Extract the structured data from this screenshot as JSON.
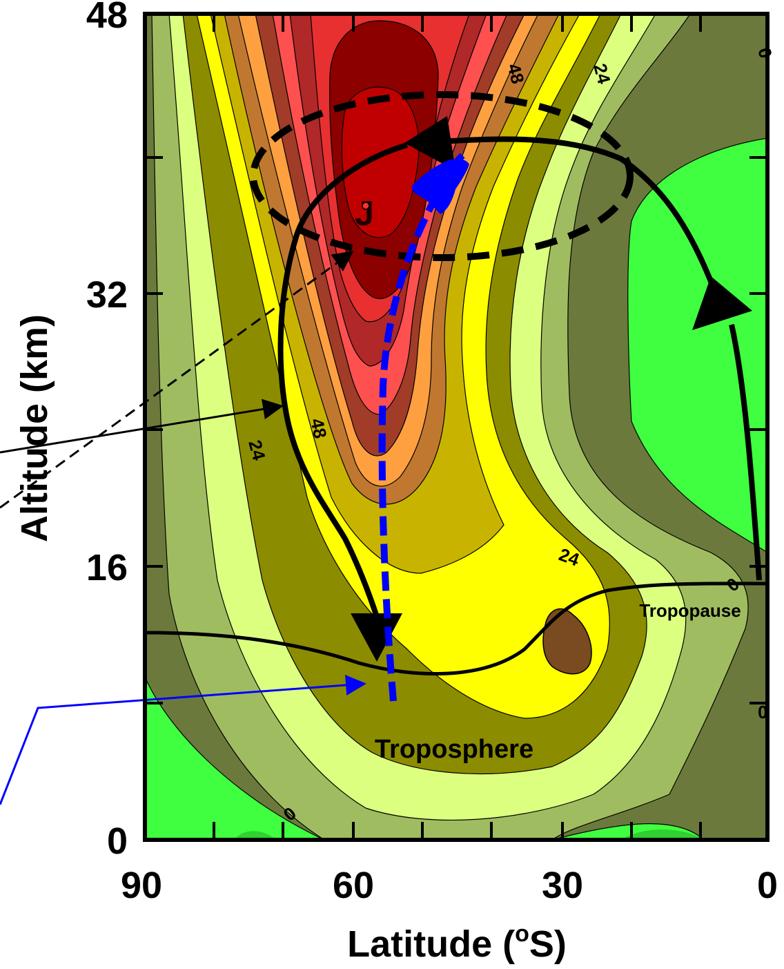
{
  "chart_data": {
    "type": "heatmap",
    "title": "",
    "xlabel": "Latitude (",
    "xlabel_sup": "o",
    "xlabel_end": "S)",
    "ylabel": "Altitude (km)",
    "x_ticks": [
      "90",
      "60",
      "30",
      "0"
    ],
    "y_ticks": [
      "0",
      "16",
      "32",
      "48"
    ],
    "xlim": [
      90,
      0
    ],
    "ylim": [
      0,
      48
    ],
    "grid": false,
    "contour_labels": [
      "48",
      "24",
      "0",
      "48",
      "24",
      "24",
      "0",
      "0",
      "0"
    ],
    "annotations": {
      "jet": "J",
      "tropopause": "Tropopause",
      "troposphere": "Troposphere"
    },
    "colors": {
      "green": "#40ff40",
      "olive_dark": "#6b7a3c",
      "olive_light": "#a0bc60",
      "yellow_light": "#dcff80",
      "olive": "#8c8c00",
      "yellow": "#ffff00",
      "mustard": "#c8b400",
      "orange_brown": "#c07830",
      "orange": "#ffa040",
      "brown_red": "#a03c28",
      "red_light": "#ff5050",
      "red_dark": "#b02828",
      "red": "#e83030",
      "maroon": "#8c0000",
      "core": "#c00000",
      "brown": "#7a4a20",
      "blue_path": "#0000ff"
    }
  }
}
